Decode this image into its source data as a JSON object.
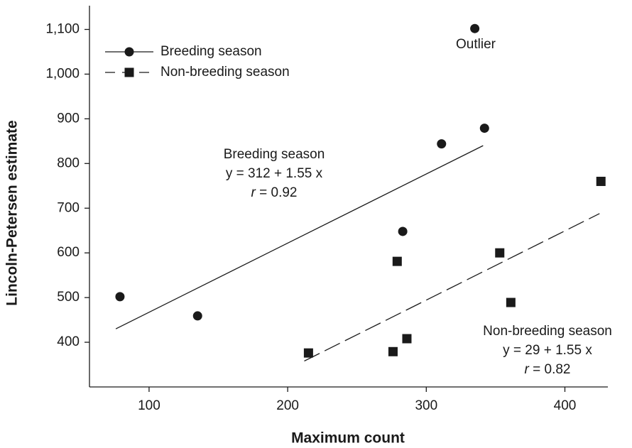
{
  "chart_data": {
    "type": "scatter",
    "x_label": "Maximum count",
    "y_label": "Lincoln-Petersen estimate",
    "xlim": [
      57,
      431
    ],
    "ylim": [
      300,
      1150
    ],
    "xticks": [
      100,
      200,
      300,
      400
    ],
    "yticks": [
      400,
      500,
      600,
      700,
      800,
      900,
      {
        "value": 1000,
        "label": "1,000"
      },
      {
        "value": 1100,
        "label": "1,100"
      }
    ],
    "legend": "upper left",
    "series": [
      {
        "name": "Breeding season",
        "color": "#1a1a1a",
        "marker": "circle",
        "dash": false,
        "x": [
          79,
          135,
          283,
          311,
          342,
          335
        ],
        "values": [
          502,
          459,
          648,
          844,
          879,
          1102
        ],
        "fit": {
          "x": [
            76,
            341
          ],
          "values": [
            430,
            840
          ]
        }
      },
      {
        "name": "Non-breeding season",
        "color": "#1a1a1a",
        "marker": "square",
        "dash": true,
        "x": [
          215,
          276,
          286,
          279,
          353,
          361,
          426
        ],
        "values": [
          376,
          379,
          408,
          581,
          600,
          489,
          760
        ],
        "fit": {
          "x": [
            212,
            425
          ],
          "values": [
            358,
            688
          ]
        }
      }
    ],
    "annotations": [
      {
        "lines": [
          "Outlier"
        ]
      },
      {
        "lines": [
          "Breeding season",
          "y = 312 + 1.55 x"
        ],
        "italic": "r",
        "stat": " = 0.92"
      },
      {
        "lines": [
          "Non-breeding season",
          "y = 29 + 1.55 x"
        ],
        "italic": "r",
        "stat": " = 0.82"
      }
    ]
  }
}
